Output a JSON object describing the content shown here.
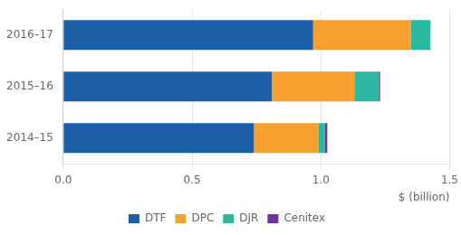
{
  "chart_data": {
    "type": "bar",
    "orientation": "horizontal",
    "stacked": true,
    "categories": [
      "2014–15",
      "2015–16",
      "2016–17"
    ],
    "series": [
      {
        "name": "DTF",
        "color": "#1a5fa8",
        "values": [
          0.74,
          0.81,
          0.97
        ]
      },
      {
        "name": "DPC",
        "color": "#f5a030",
        "values": [
          0.25,
          0.32,
          0.38
        ]
      },
      {
        "name": "DJR",
        "color": "#2ab8a0",
        "values": [
          0.025,
          0.095,
          0.075
        ]
      },
      {
        "name": "Cenitex",
        "color": "#7030a0",
        "values": [
          0.01,
          0.005,
          0.0
        ]
      }
    ],
    "xlim": [
      0,
      1.5
    ],
    "xticks": [
      {
        "value": 0,
        "label": "0.0"
      },
      0.5,
      {
        "value": 1,
        "label": "1.0"
      },
      1.5
    ],
    "xlabel": "$ (billion)",
    "grid": true,
    "legend": "bottom"
  }
}
